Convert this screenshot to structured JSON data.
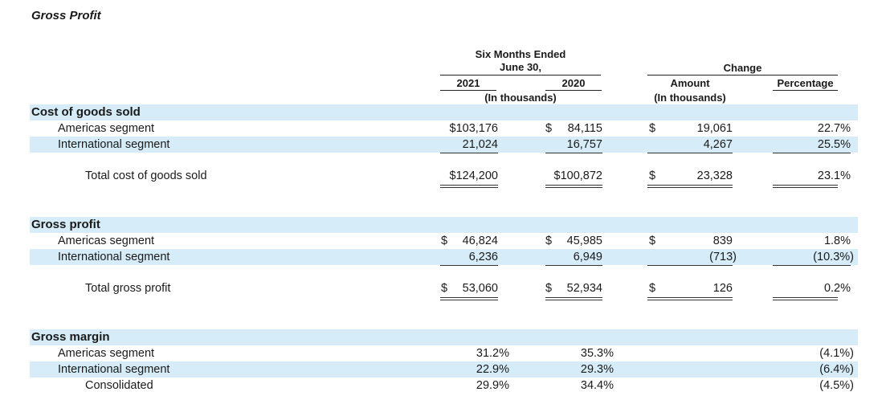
{
  "title": "Gross Profit",
  "headers": {
    "six_months_line1": "Six Months Ended",
    "six_months_line2": "June 30,",
    "year_2021": "2021",
    "year_2020": "2020",
    "in_thousands": "(In thousands)",
    "change": "Change",
    "amount": "Amount",
    "amount_sub": "(In thousands)",
    "percentage": "Percentage"
  },
  "cost_of_goods_sold": {
    "heading": "Cost of goods sold",
    "americas": {
      "label": "Americas segment",
      "y2021": "$103,176",
      "y2020_sym": "$",
      "y2020": "84,115",
      "chg_sym": "$",
      "amount": "19,061",
      "pct": "22.7%"
    },
    "international": {
      "label": "International segment",
      "y2021": "21,024",
      "y2020": "16,757",
      "amount": "4,267",
      "pct": "25.5%"
    },
    "total": {
      "label": "Total cost of goods sold",
      "y2021": "$124,200",
      "y2020": "$100,872",
      "chg_sym": "$",
      "amount": "23,328",
      "pct": "23.1%"
    }
  },
  "gross_profit": {
    "heading": "Gross profit",
    "americas": {
      "label": "Americas segment",
      "y2021_sym": "$",
      "y2021": "46,824",
      "y2020_sym": "$",
      "y2020": "45,985",
      "chg_sym": "$",
      "amount": "839",
      "pct": "1.8%"
    },
    "international": {
      "label": "International segment",
      "y2021": "6,236",
      "y2020": "6,949",
      "amount": "(713)",
      "pct": "(10.3%)"
    },
    "total": {
      "label": "Total gross profit",
      "y2021_sym": "$",
      "y2021": "53,060",
      "y2020_sym": "$",
      "y2020": "52,934",
      "chg_sym": "$",
      "amount": "126",
      "pct": "0.2%"
    }
  },
  "gross_margin": {
    "heading": "Gross margin",
    "americas": {
      "label": "Americas segment",
      "y2021": "31.2%",
      "y2020": "35.3%",
      "pct": "(4.1%)"
    },
    "international": {
      "label": "International segment",
      "y2021": "22.9%",
      "y2020": "29.3%",
      "pct": "(6.4%)"
    },
    "consolidated": {
      "label": "Consolidated",
      "y2021": "29.9%",
      "y2020": "34.4%",
      "pct": "(4.5%)"
    }
  }
}
